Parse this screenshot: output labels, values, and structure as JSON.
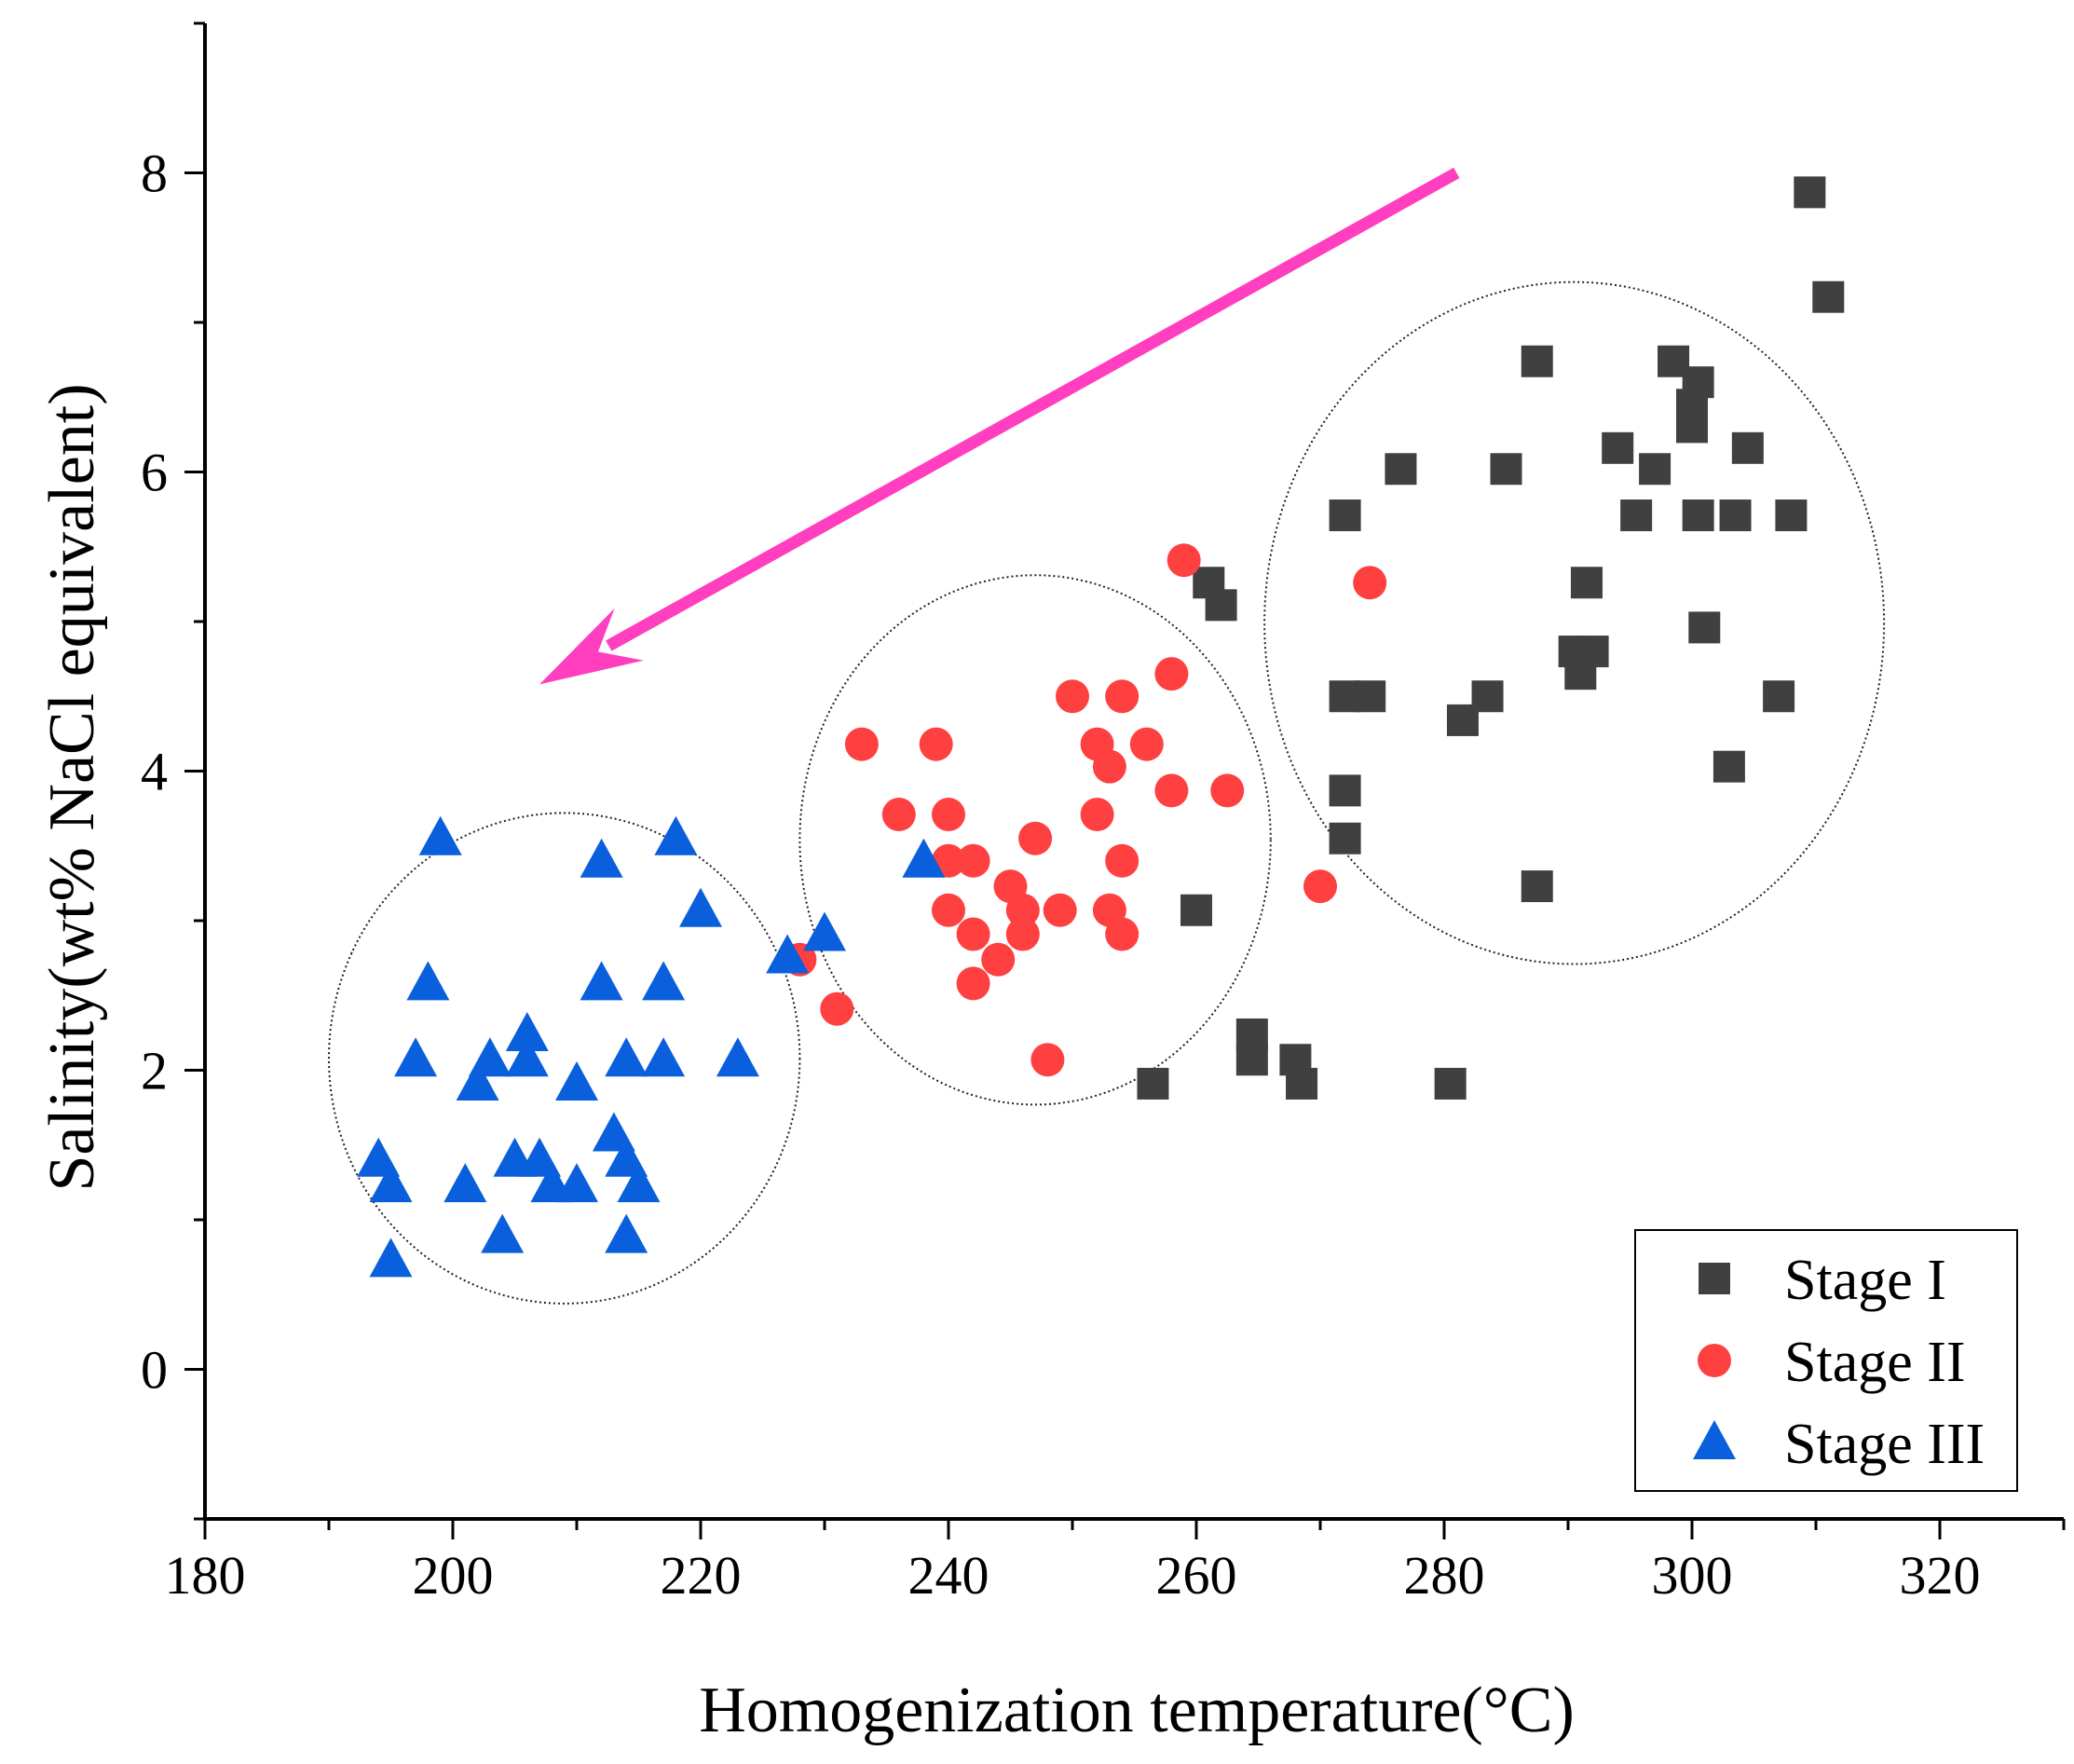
{
  "chart_data": {
    "type": "scatter",
    "title": "",
    "xlabel": "Homogenization temperature(°C)",
    "ylabel": "Salinity(wt% NaCl equivalent)",
    "xlim": [
      180,
      330
    ],
    "ylim": [
      -1,
      9
    ],
    "xticks": [
      180,
      200,
      220,
      240,
      260,
      280,
      300,
      320
    ],
    "xtick_labels": [
      "180",
      "200",
      "220",
      "240",
      "260",
      "280",
      "300",
      "320"
    ],
    "yticks": [
      0,
      2,
      4,
      6,
      8
    ],
    "ytick_labels": [
      "0",
      "2",
      "4",
      "6",
      "8"
    ],
    "grid": false,
    "legend_position": "bottom-right",
    "series": [
      {
        "name": "Stage I",
        "marker": "square",
        "color": "#404040",
        "points": [
          [
            309.5,
            7.87
          ],
          [
            311,
            7.17
          ],
          [
            287.5,
            6.74
          ],
          [
            298.5,
            6.74
          ],
          [
            300.5,
            6.6
          ],
          [
            300,
            6.45
          ],
          [
            300,
            6.3
          ],
          [
            294,
            6.16
          ],
          [
            304.5,
            6.16
          ],
          [
            276.5,
            6.02
          ],
          [
            285,
            6.02
          ],
          [
            297,
            6.02
          ],
          [
            272,
            5.71
          ],
          [
            295.5,
            5.71
          ],
          [
            300.5,
            5.71
          ],
          [
            303.5,
            5.71
          ],
          [
            308,
            5.71
          ],
          [
            261,
            5.26
          ],
          [
            291.5,
            5.26
          ],
          [
            262,
            5.11
          ],
          [
            301,
            4.96
          ],
          [
            290.5,
            4.8
          ],
          [
            292,
            4.8
          ],
          [
            291,
            4.65
          ],
          [
            272,
            4.5
          ],
          [
            274,
            4.5
          ],
          [
            283.5,
            4.5
          ],
          [
            307,
            4.5
          ],
          [
            281.5,
            4.34
          ],
          [
            303,
            4.03
          ],
          [
            272,
            3.87
          ],
          [
            272,
            3.55
          ],
          [
            287.5,
            3.23
          ],
          [
            260,
            3.07
          ],
          [
            264.5,
            2.24
          ],
          [
            264.5,
            2.07
          ],
          [
            268,
            2.07
          ],
          [
            256.5,
            1.91
          ],
          [
            268.5,
            1.91
          ],
          [
            280.5,
            1.91
          ]
        ]
      },
      {
        "name": "Stage II",
        "marker": "circle",
        "color": "#ff4040",
        "points": [
          [
            259,
            5.41
          ],
          [
            274,
            5.26
          ],
          [
            258,
            4.65
          ],
          [
            250,
            4.5
          ],
          [
            254,
            4.5
          ],
          [
            233,
            4.18
          ],
          [
            239,
            4.18
          ],
          [
            252,
            4.18
          ],
          [
            256,
            4.18
          ],
          [
            253,
            4.03
          ],
          [
            258,
            3.87
          ],
          [
            262.5,
            3.87
          ],
          [
            236,
            3.71
          ],
          [
            240,
            3.71
          ],
          [
            252,
            3.71
          ],
          [
            247,
            3.55
          ],
          [
            240,
            3.4
          ],
          [
            242,
            3.4
          ],
          [
            254,
            3.4
          ],
          [
            245,
            3.23
          ],
          [
            270,
            3.23
          ],
          [
            240,
            3.07
          ],
          [
            246,
            3.07
          ],
          [
            249,
            3.07
          ],
          [
            253,
            3.07
          ],
          [
            242,
            2.91
          ],
          [
            246,
            2.91
          ],
          [
            254,
            2.91
          ],
          [
            244,
            2.74
          ],
          [
            228,
            2.74
          ],
          [
            242,
            2.58
          ],
          [
            231,
            2.41
          ],
          [
            248,
            2.07
          ]
        ]
      },
      {
        "name": "Stage III",
        "marker": "triangle",
        "color": "#0a5fdc",
        "points": [
          [
            199,
            3.55
          ],
          [
            218,
            3.55
          ],
          [
            212,
            3.4
          ],
          [
            238,
            3.4
          ],
          [
            220,
            3.07
          ],
          [
            230,
            2.91
          ],
          [
            227,
            2.76
          ],
          [
            198,
            2.58
          ],
          [
            212,
            2.58
          ],
          [
            217,
            2.58
          ],
          [
            206,
            2.24
          ],
          [
            197,
            2.07
          ],
          [
            203,
            2.07
          ],
          [
            206,
            2.07
          ],
          [
            214,
            2.07
          ],
          [
            217,
            2.07
          ],
          [
            223,
            2.07
          ],
          [
            202,
            1.91
          ],
          [
            210,
            1.91
          ],
          [
            213,
            1.57
          ],
          [
            194,
            1.4
          ],
          [
            205,
            1.4
          ],
          [
            207,
            1.4
          ],
          [
            214,
            1.4
          ],
          [
            195,
            1.23
          ],
          [
            201,
            1.23
          ],
          [
            208,
            1.23
          ],
          [
            210,
            1.23
          ],
          [
            215,
            1.23
          ],
          [
            204,
            0.89
          ],
          [
            214,
            0.89
          ],
          [
            195,
            0.73
          ]
        ]
      }
    ],
    "annotations": [
      {
        "kind": "ellipse",
        "center": [
          209,
          2.08
        ],
        "radii": [
          19,
          1.64
        ]
      },
      {
        "kind": "ellipse",
        "center": [
          247,
          3.54
        ],
        "radii": [
          19,
          1.77
        ]
      },
      {
        "kind": "ellipse",
        "center": [
          290.5,
          4.99
        ],
        "radii": [
          25,
          2.28
        ]
      },
      {
        "kind": "arrow",
        "from": [
          281,
          8.0
        ],
        "to": [
          207,
          4.58
        ],
        "color": "#ff3fbf"
      }
    ]
  }
}
